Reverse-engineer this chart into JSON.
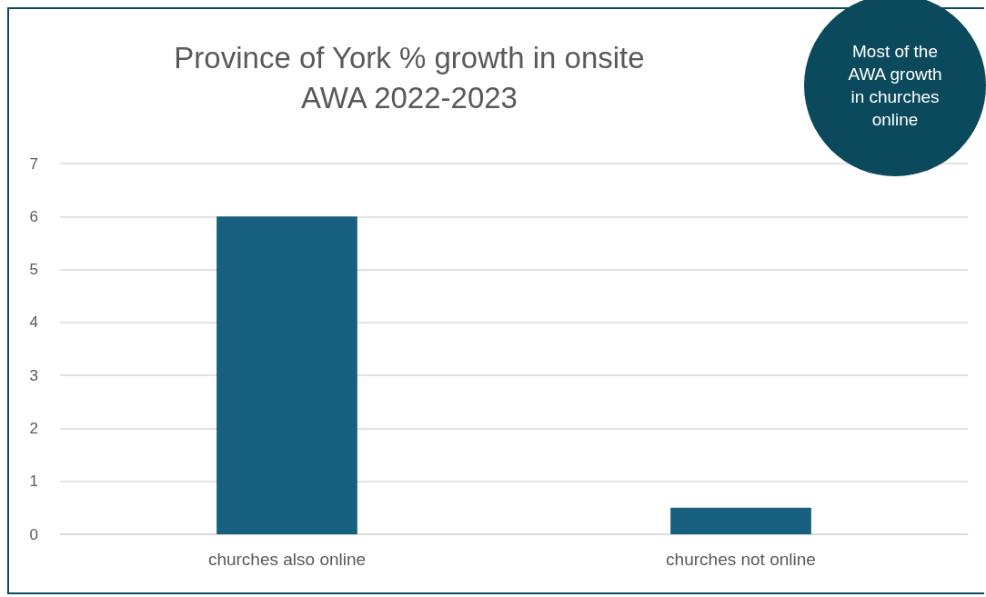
{
  "chart_data": {
    "type": "bar",
    "title": "Province of York % growth in onsite\nAWA 2022-2023",
    "categories": [
      "churches also online",
      "churches not online"
    ],
    "values": [
      6,
      0.5
    ],
    "color": "#165f7e",
    "ylim": [
      0,
      7
    ],
    "yticks": [
      0,
      1,
      2,
      3,
      4,
      5,
      6,
      7
    ],
    "grid": "y",
    "annotations": [
      "Most of the\nAWA growth\nin churches\nonline"
    ]
  }
}
